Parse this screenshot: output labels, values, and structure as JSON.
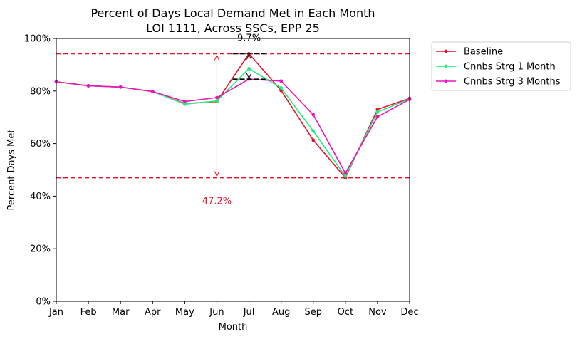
{
  "chart_data": {
    "type": "line",
    "title": "Percent of Days Local Demand Met in Each Month",
    "subtitle": "LOI 1111, Across SSCs, EPP 25",
    "xlabel": "Month",
    "ylabel": "Percent Days Met",
    "categories": [
      "Jan",
      "Feb",
      "Mar",
      "Apr",
      "May",
      "Jun",
      "Jul",
      "Aug",
      "Sep",
      "Oct",
      "Nov",
      "Dec"
    ],
    "ylim": [
      0,
      100
    ],
    "yticks": [
      "0%",
      "20%",
      "40%",
      "60%",
      "80%",
      "100%"
    ],
    "grid": false,
    "legend_position": "outside-right",
    "series": [
      {
        "name": "Baseline",
        "color": "#e8102a",
        "values": [
          83.5,
          82.0,
          81.5,
          79.8,
          75.2,
          76.0,
          94.2,
          80.2,
          61.3,
          47.0,
          73.0,
          77.2
        ]
      },
      {
        "name": "Cnnbs Strg 1 Month",
        "color": "#22ee7c",
        "values": [
          83.5,
          82.0,
          81.5,
          79.8,
          75.0,
          76.2,
          88.5,
          81.2,
          64.8,
          47.6,
          72.0,
          77.0
        ]
      },
      {
        "name": "Cnnbs Strg 3 Months",
        "color": "#f012be",
        "values": [
          83.5,
          82.0,
          81.5,
          79.8,
          76.0,
          77.5,
          84.5,
          83.8,
          71.0,
          48.8,
          70.2,
          76.8
        ]
      }
    ],
    "reference_lines": [
      {
        "value": 94.2,
        "color": "#e8102a",
        "style": "dashed"
      },
      {
        "value": 47.0,
        "color": "#e8102a",
        "style": "dashed"
      }
    ],
    "annotations": [
      {
        "text": "9.7%",
        "color": "#000000",
        "category": "Jul",
        "from": 84.5,
        "to": 94.2
      },
      {
        "text": "47.2%",
        "color": "#e8102a",
        "category": "Jun",
        "from": 47.0,
        "to": 94.2
      }
    ]
  }
}
